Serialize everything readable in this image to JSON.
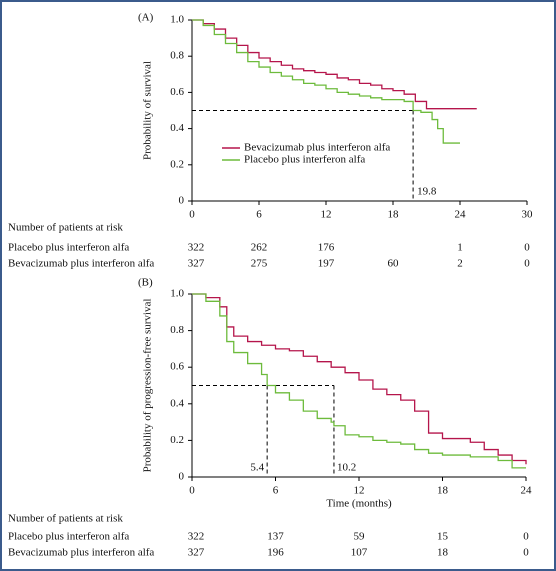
{
  "chart_data": [
    {
      "type": "line",
      "panel_label": "(A)",
      "ylabel": "Probability of survival",
      "xlim": [
        0,
        30
      ],
      "xticks": [
        0,
        6,
        12,
        18,
        24,
        30
      ],
      "ylim": [
        0,
        1
      ],
      "yticks": [
        0,
        0.2,
        0.4,
        0.6,
        0.8,
        {
          "value": 1,
          "label": "1.0"
        }
      ],
      "step": true,
      "legend": "center",
      "series": [
        {
          "name": "Bevacizumab plus interferon alfa",
          "color": "#b5154b",
          "x": [
            0,
            1,
            2,
            3,
            4,
            5,
            6,
            7,
            8,
            9,
            10,
            11,
            12,
            13,
            14,
            15,
            16,
            17,
            18,
            19,
            20,
            21,
            25.5
          ],
          "values": [
            1,
            0.98,
            0.95,
            0.9,
            0.86,
            0.82,
            0.79,
            0.77,
            0.75,
            0.73,
            0.72,
            0.71,
            0.7,
            0.68,
            0.67,
            0.65,
            0.64,
            0.62,
            0.61,
            0.59,
            0.55,
            0.51,
            0.51
          ]
        },
        {
          "name": "Placebo plus interferon alfa",
          "color": "#6dbb3c",
          "x": [
            0,
            1,
            2,
            3,
            4,
            5,
            6,
            7,
            8,
            9,
            10,
            11,
            12,
            13,
            14,
            15,
            16,
            17,
            18,
            19,
            19.8,
            20.5,
            21.5,
            22,
            22.5,
            24
          ],
          "values": [
            1,
            0.97,
            0.92,
            0.87,
            0.82,
            0.77,
            0.74,
            0.71,
            0.69,
            0.67,
            0.65,
            0.64,
            0.62,
            0.6,
            0.59,
            0.58,
            0.57,
            0.56,
            0.56,
            0.55,
            0.5,
            0.49,
            0.45,
            0.4,
            0.32,
            0.32
          ]
        }
      ],
      "reference_lines": {
        "y": 0.5,
        "x": [
          19.8
        ]
      },
      "risk_table": {
        "title": "Number of patients at risk",
        "rows": [
          {
            "name": "Placebo plus interferon alfa",
            "values": [
              322,
              262,
              176,
              null,
              1,
              0
            ]
          },
          {
            "name": "Bevacizumab plus interferon alfa",
            "values": [
              327,
              275,
              197,
              60,
              2,
              0
            ]
          }
        ]
      }
    },
    {
      "type": "line",
      "panel_label": "(B)",
      "ylabel": "Probability of progression-free survival",
      "xlabel": "Time (months)",
      "xlim": [
        0,
        24
      ],
      "xticks": [
        0,
        6,
        12,
        18,
        24
      ],
      "ylim": [
        0,
        1
      ],
      "yticks": [
        0,
        0.2,
        0.4,
        0.6,
        0.8,
        {
          "value": 1,
          "label": "1.0"
        }
      ],
      "step": true,
      "series": [
        {
          "color": "#b5154b",
          "x": [
            0,
            1,
            2,
            2.5,
            3,
            4,
            5,
            6,
            7,
            8,
            9,
            10,
            11,
            12,
            13,
            14,
            15,
            16,
            17,
            18,
            20,
            21,
            22,
            23,
            24
          ],
          "values": [
            1,
            0.98,
            0.93,
            0.82,
            0.77,
            0.74,
            0.72,
            0.7,
            0.69,
            0.66,
            0.63,
            0.6,
            0.57,
            0.53,
            0.48,
            0.45,
            0.42,
            0.36,
            0.24,
            0.21,
            0.19,
            0.15,
            0.12,
            0.09,
            0.07
          ]
        },
        {
          "color": "#6dbb3c",
          "x": [
            0,
            1,
            2,
            2.5,
            3,
            4,
            5,
            5.4,
            6,
            7,
            8,
            9,
            10,
            10.2,
            11,
            12,
            13,
            14,
            15,
            16,
            17,
            18,
            20,
            22,
            23,
            24
          ],
          "values": [
            1,
            0.96,
            0.88,
            0.74,
            0.68,
            0.62,
            0.56,
            0.5,
            0.46,
            0.42,
            0.36,
            0.32,
            0.3,
            0.28,
            0.23,
            0.22,
            0.2,
            0.19,
            0.18,
            0.15,
            0.13,
            0.12,
            0.11,
            0.09,
            0.05,
            0.05
          ]
        }
      ],
      "reference_lines": {
        "y": 0.5,
        "x": [
          5.4,
          10.2
        ]
      },
      "risk_table": {
        "title": "Number of patients at risk",
        "rows": [
          {
            "name": "Placebo plus interferon alfa",
            "values": [
              322,
              137,
              59,
              15,
              0
            ]
          },
          {
            "name": "Bevacizumab plus interferon alfa",
            "values": [
              327,
              196,
              107,
              18,
              0
            ]
          }
        ]
      }
    }
  ]
}
